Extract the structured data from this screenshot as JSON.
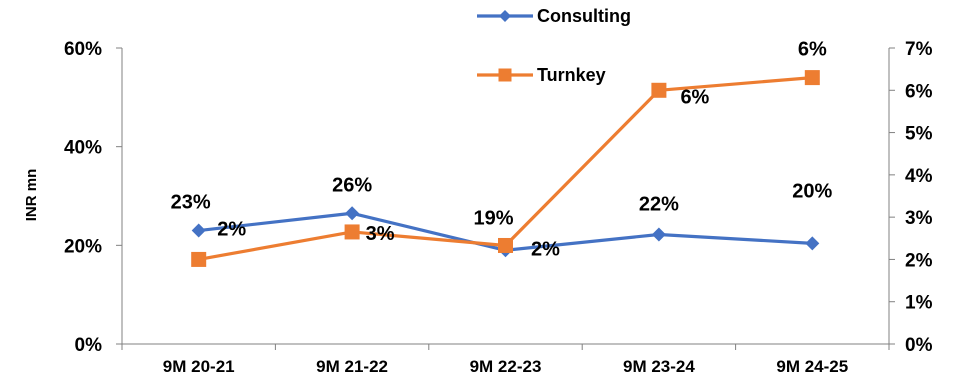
{
  "chart_data": {
    "type": "line",
    "categories": [
      "9M 20-21",
      "9M 21-22",
      "9M 22-23",
      "9M 23-24",
      "9M 24-25"
    ],
    "ylabel": "INR mn",
    "y_left": {
      "range": [
        0,
        0.6
      ],
      "ticks": [
        "0%",
        "20%",
        "40%",
        "60%"
      ]
    },
    "y_right": {
      "range": [
        0,
        0.07
      ],
      "ticks": [
        "0%",
        "1%",
        "2%",
        "3%",
        "4%",
        "5%",
        "6%",
        "7%"
      ]
    },
    "grid": false,
    "legend_position": "top",
    "series": [
      {
        "name": "Consulting",
        "axis": "left",
        "color": "#4472C4",
        "marker": "diamond",
        "values": [
          0.23,
          0.265,
          0.19,
          0.222,
          0.204
        ],
        "labels": [
          "23%",
          "26%",
          "19%",
          "22%",
          "20%"
        ]
      },
      {
        "name": "Turnkey",
        "axis": "right",
        "color": "#ED7D31",
        "marker": "square",
        "values": [
          0.02,
          0.0265,
          0.0233,
          0.06,
          0.063
        ],
        "labels": [
          "2%",
          "3%",
          "2%",
          "6%",
          "6%"
        ]
      }
    ]
  }
}
